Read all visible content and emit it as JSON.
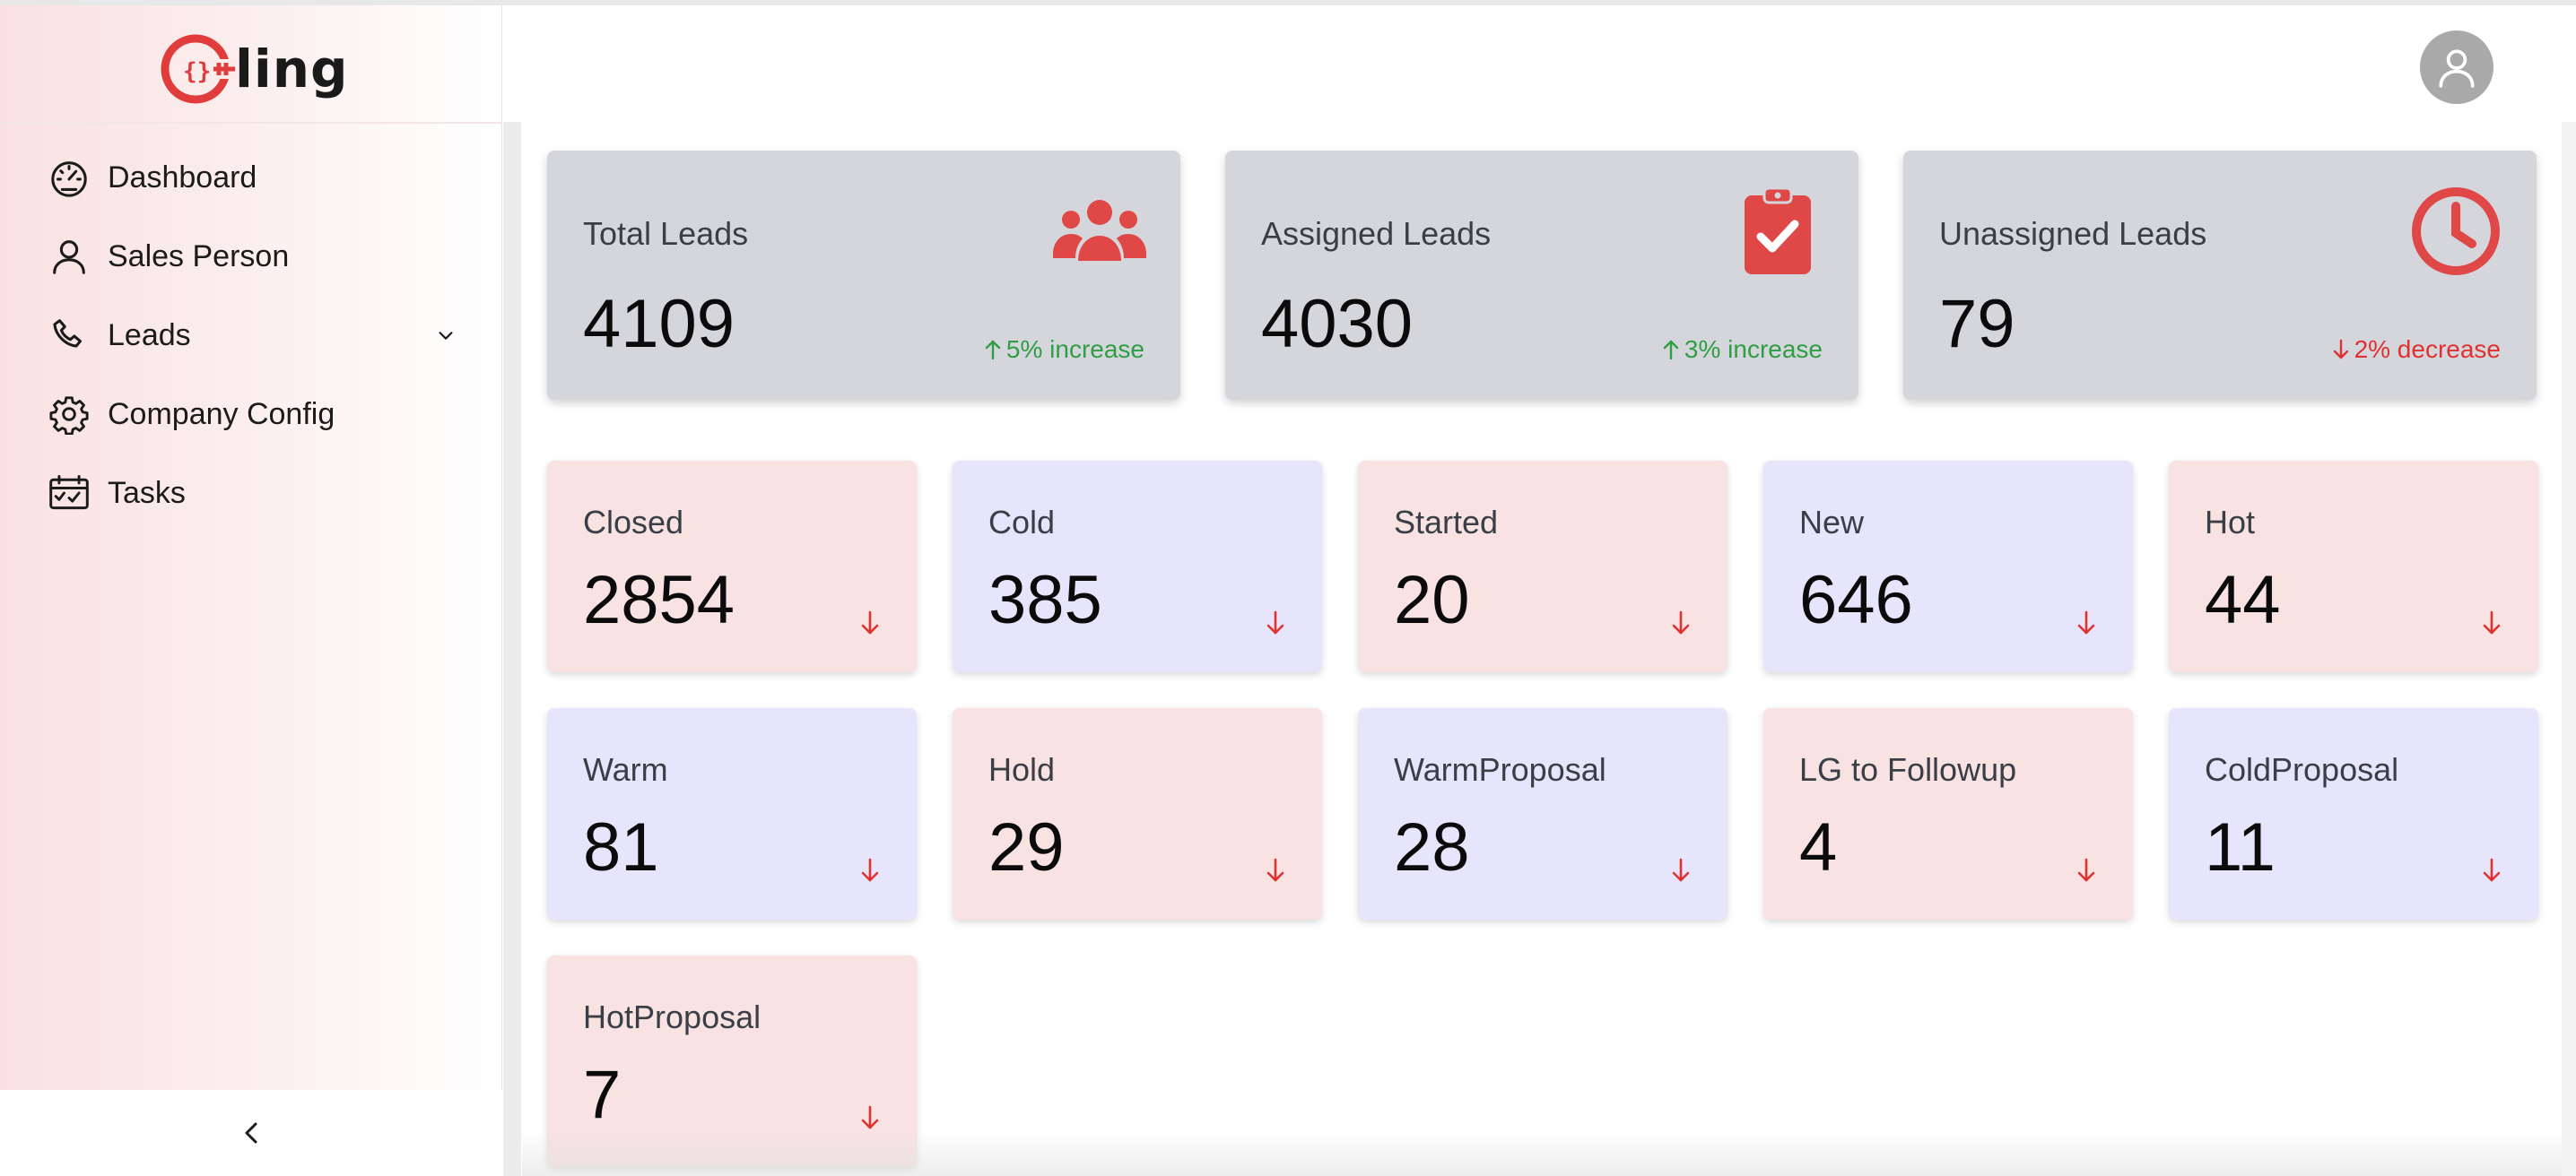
{
  "brand": {
    "logo_text": "ling",
    "logo_mark_text": "{}",
    "accent": "#e03c3c"
  },
  "sidebar": {
    "items": [
      {
        "label": "Dashboard",
        "icon": "speedometer-icon"
      },
      {
        "label": "Sales Person",
        "icon": "person-icon"
      },
      {
        "label": "Leads",
        "icon": "phone-icon",
        "has_submenu": true
      },
      {
        "label": "Company Config",
        "icon": "gear-icon"
      },
      {
        "label": "Tasks",
        "icon": "calendar-check-icon"
      }
    ],
    "collapse_glyph": "<"
  },
  "summary_cards": [
    {
      "title": "Total Leads",
      "value": "4109",
      "change": "5% increase",
      "direction": "up",
      "icon": "users-icon"
    },
    {
      "title": "Assigned Leads",
      "value": "4030",
      "change": "3% increase",
      "direction": "up",
      "icon": "clipboard-check-icon"
    },
    {
      "title": "Unassigned Leads",
      "value": "79",
      "change": "2% decrease",
      "direction": "down",
      "icon": "clock-icon"
    }
  ],
  "status_cards": [
    {
      "title": "Closed",
      "value": "2854",
      "color": "pink"
    },
    {
      "title": "Cold",
      "value": "385",
      "color": "lavender"
    },
    {
      "title": "Started",
      "value": "20",
      "color": "pink"
    },
    {
      "title": "New",
      "value": "646",
      "color": "lavender"
    },
    {
      "title": "Hot",
      "value": "44",
      "color": "pink"
    },
    {
      "title": "Warm",
      "value": "81",
      "color": "lavender"
    },
    {
      "title": "Hold",
      "value": "29",
      "color": "pink"
    },
    {
      "title": "WarmProposal",
      "value": "28",
      "color": "lavender"
    },
    {
      "title": "LG to Followup",
      "value": "4",
      "color": "pink"
    },
    {
      "title": "ColdProposal",
      "value": "11",
      "color": "lavender"
    },
    {
      "title": "HotProposal",
      "value": "7",
      "color": "pink"
    }
  ],
  "colors": {
    "increase": "#2f9e44",
    "decrease": "#e03131",
    "card_grey": "#d4d6db",
    "card_pink": "#f8e2e2",
    "card_lavender": "#e7e5fb"
  }
}
